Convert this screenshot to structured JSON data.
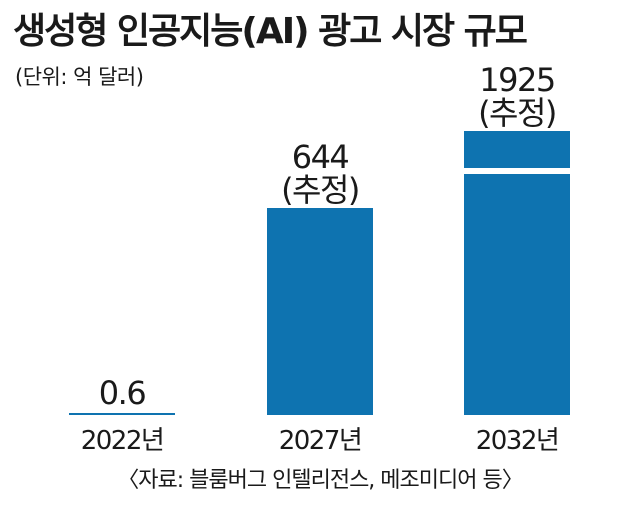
{
  "title": "생성형 인공지능(AI) 광고 시장 규모",
  "unit_note": "(단위: 억 달러)",
  "source": "〈자료: 블룸버그 인텔리전스, 메조미디어 등〉",
  "colors": {
    "bar": "#0e73b0",
    "text": "#1a1a1a"
  },
  "chart_data": {
    "type": "bar",
    "categories": [
      "2022년",
      "2027년",
      "2032년"
    ],
    "values": [
      0.6,
      644,
      1925
    ],
    "value_labels": [
      "0.6",
      "644",
      "1925"
    ],
    "value_notes": [
      "",
      "(추정)",
      "(추정)"
    ],
    "axis_break_on": [
      "2032년"
    ],
    "grid": false,
    "legend": "none"
  }
}
